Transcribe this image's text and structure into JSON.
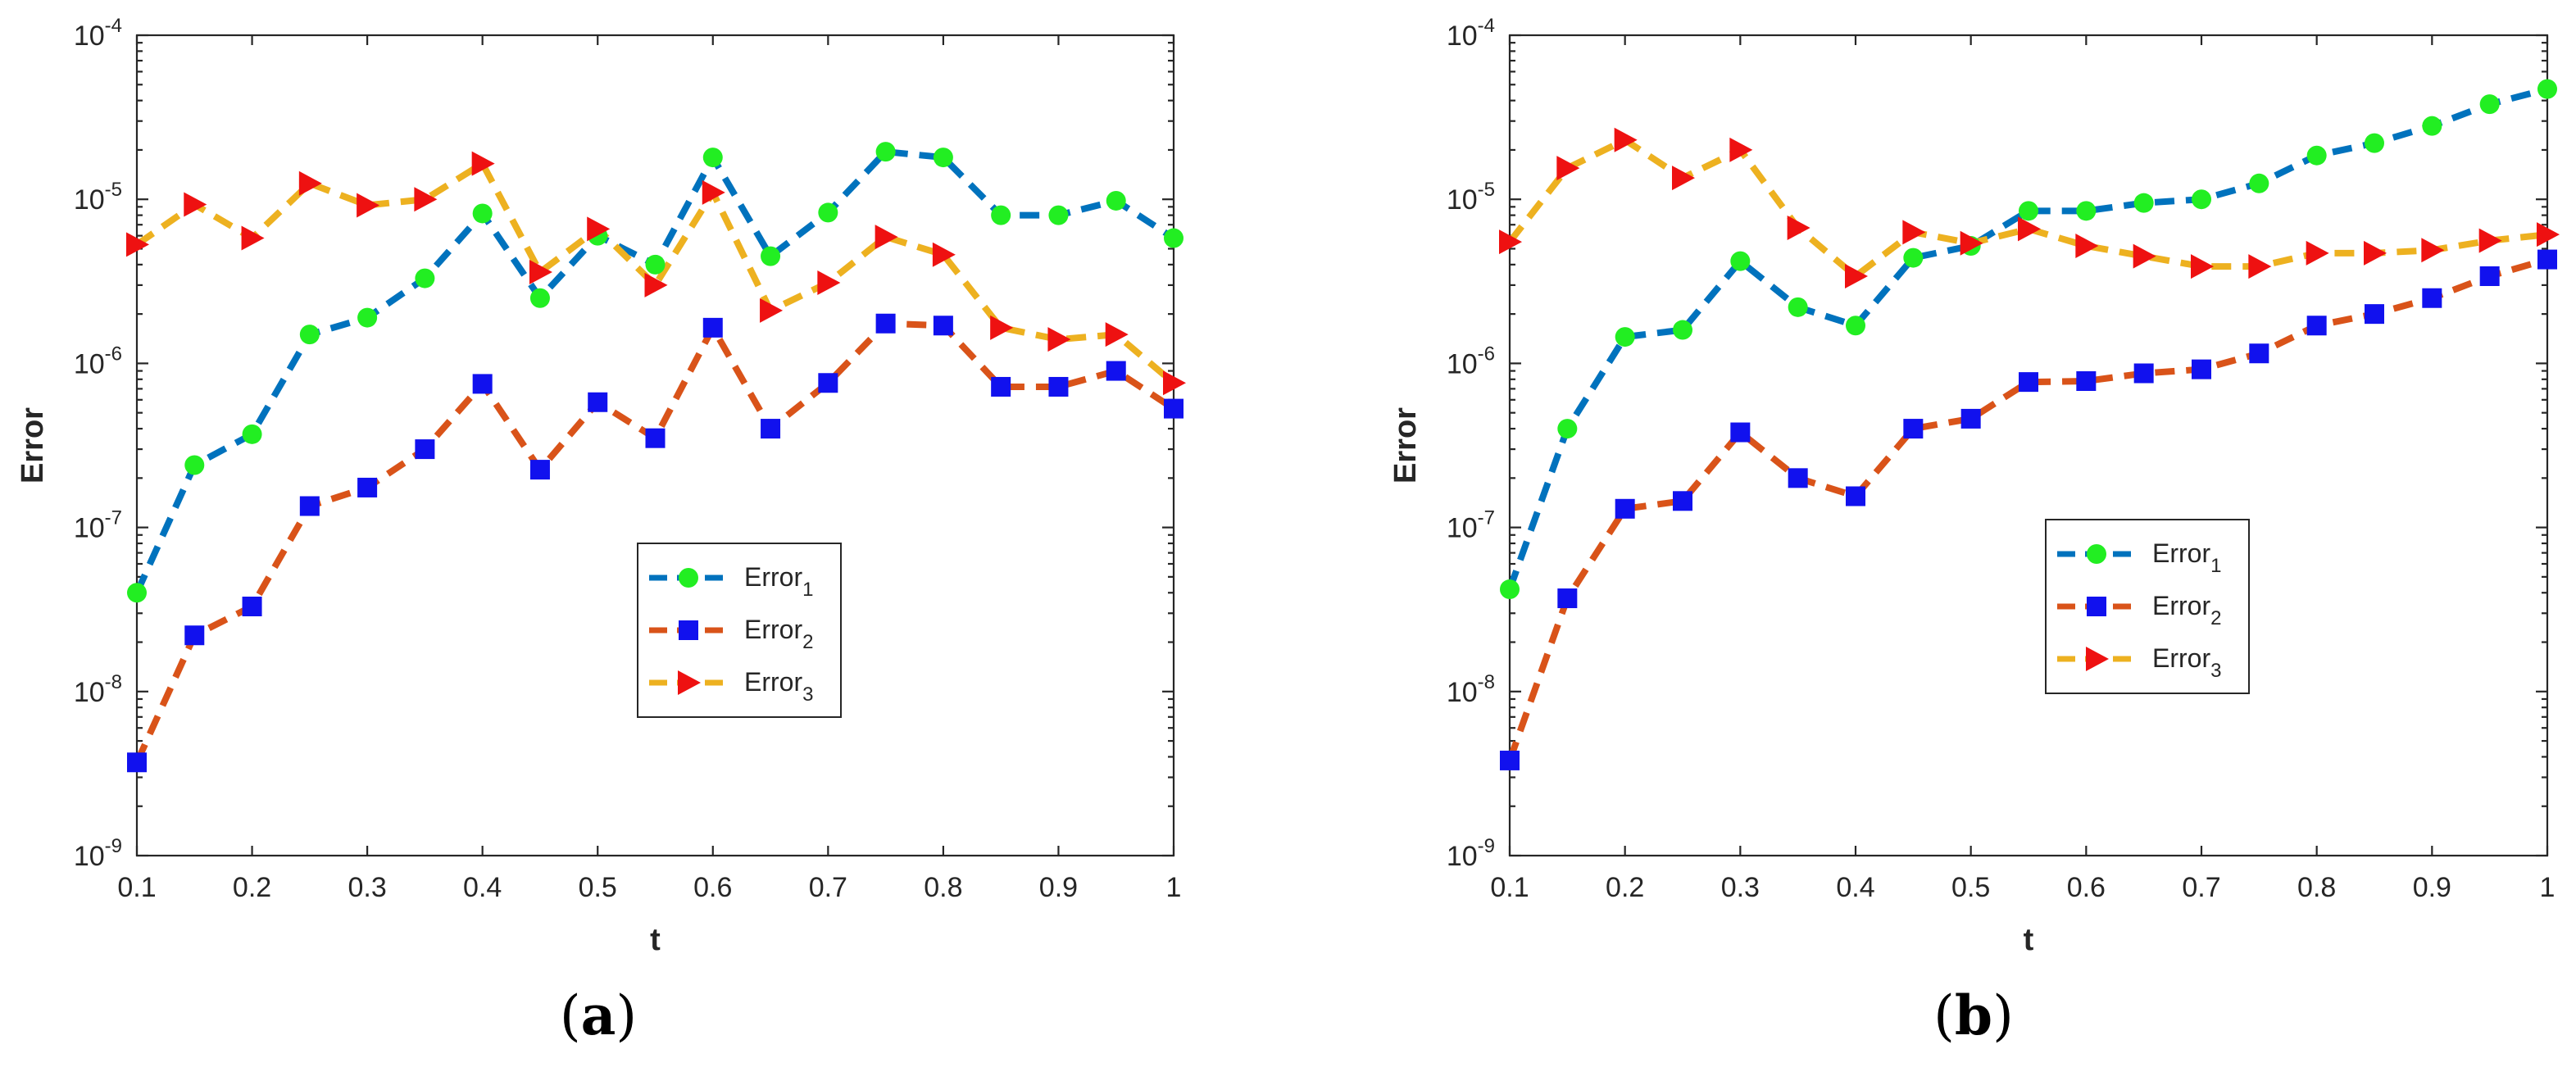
{
  "chart_data": [
    {
      "id": "a",
      "type": "line",
      "panel_label": "a",
      "xlabel": "t",
      "ylabel": "Error",
      "yscale": "log",
      "xlim": [
        0.1,
        1
      ],
      "ylim": [
        1e-09,
        0.0001
      ],
      "xticks": [
        "0.1",
        "0.2",
        "0.3",
        "0.4",
        "0.5",
        "0.6",
        "0.7",
        "0.8",
        "0.9",
        "1"
      ],
      "yticks": [
        {
          "base": "10",
          "exp": "-9"
        },
        {
          "base": "10",
          "exp": "-8"
        },
        {
          "base": "10",
          "exp": "-7"
        },
        {
          "base": "10",
          "exp": "-6"
        },
        {
          "base": "10",
          "exp": "-5"
        },
        {
          "base": "10",
          "exp": "-4"
        }
      ],
      "legend_position": "center",
      "x": [
        0.1,
        0.15,
        0.2,
        0.25,
        0.3,
        0.35,
        0.4,
        0.45,
        0.5,
        0.55,
        0.6,
        0.65,
        0.7,
        0.75,
        0.8,
        0.85,
        0.9,
        0.95,
        1.0
      ],
      "series": [
        {
          "name": "Error",
          "sub": "1",
          "line_color": "#0072BD",
          "marker": "circle",
          "marker_color": "#22EE22",
          "values": [
            4e-08,
            2.4e-07,
            3.7e-07,
            1.5e-06,
            1.9e-06,
            3.3e-06,
            8.2e-06,
            2.5e-06,
            6e-06,
            4e-06,
            1.8e-05,
            4.5e-06,
            8.3e-06,
            1.95e-05,
            1.8e-05,
            8e-06,
            8e-06,
            9.8e-06,
            5.8e-06
          ]
        },
        {
          "name": "Error",
          "sub": "2",
          "line_color": "#D95319",
          "marker": "square",
          "marker_color": "#1111EE",
          "values": [
            3.7e-09,
            2.2e-08,
            3.3e-08,
            1.35e-07,
            1.75e-07,
            3e-07,
            7.5e-07,
            2.25e-07,
            5.8e-07,
            3.5e-07,
            1.65e-06,
            4e-07,
            7.6e-07,
            1.75e-06,
            1.7e-06,
            7.2e-07,
            7.2e-07,
            9e-07,
            5.3e-07
          ]
        },
        {
          "name": "Error",
          "sub": "3",
          "line_color": "#EDB120",
          "marker": "triangle-right",
          "marker_color": "#EE1111",
          "values": [
            5.3e-06,
            9.3e-06,
            5.8e-06,
            1.25e-05,
            9.2e-06,
            1e-05,
            1.65e-05,
            3.6e-06,
            6.6e-06,
            3e-06,
            1.1e-05,
            2.1e-06,
            3.1e-06,
            5.9e-06,
            4.6e-06,
            1.65e-06,
            1.4e-06,
            1.5e-06,
            7.6e-07
          ]
        }
      ]
    },
    {
      "id": "b",
      "type": "line",
      "panel_label": "b",
      "xlabel": "t",
      "ylabel": "Error",
      "yscale": "log",
      "xlim": [
        0.1,
        1
      ],
      "ylim": [
        1e-09,
        0.0001
      ],
      "xticks": [
        "0.1",
        "0.2",
        "0.3",
        "0.4",
        "0.5",
        "0.6",
        "0.7",
        "0.8",
        "0.9",
        "1"
      ],
      "yticks": [
        {
          "base": "10",
          "exp": "-9"
        },
        {
          "base": "10",
          "exp": "-8"
        },
        {
          "base": "10",
          "exp": "-7"
        },
        {
          "base": "10",
          "exp": "-6"
        },
        {
          "base": "10",
          "exp": "-5"
        },
        {
          "base": "10",
          "exp": "-4"
        }
      ],
      "legend_position": "center",
      "x": [
        0.1,
        0.15,
        0.2,
        0.25,
        0.3,
        0.35,
        0.4,
        0.45,
        0.5,
        0.55,
        0.6,
        0.65,
        0.7,
        0.75,
        0.8,
        0.85,
        0.9,
        0.95,
        1.0
      ],
      "series": [
        {
          "name": "Error",
          "sub": "1",
          "line_color": "#0072BD",
          "marker": "circle",
          "marker_color": "#22EE22",
          "values": [
            4.2e-08,
            4e-07,
            1.45e-06,
            1.6e-06,
            4.2e-06,
            2.2e-06,
            1.7e-06,
            4.4e-06,
            5.2e-06,
            8.5e-06,
            8.5e-06,
            9.5e-06,
            1e-05,
            1.25e-05,
            1.85e-05,
            2.2e-05,
            2.8e-05,
            3.8e-05,
            4.7e-05
          ]
        },
        {
          "name": "Error",
          "sub": "2",
          "line_color": "#D95319",
          "marker": "square",
          "marker_color": "#1111EE",
          "values": [
            3.8e-09,
            3.7e-08,
            1.3e-07,
            1.45e-07,
            3.8e-07,
            2e-07,
            1.55e-07,
            4e-07,
            4.6e-07,
            7.7e-07,
            7.8e-07,
            8.7e-07,
            9.2e-07,
            1.15e-06,
            1.7e-06,
            2e-06,
            2.5e-06,
            3.4e-06,
            4.3e-06
          ]
        },
        {
          "name": "Error",
          "sub": "3",
          "line_color": "#EDB120",
          "marker": "triangle-right",
          "marker_color": "#EE1111",
          "values": [
            5.5e-06,
            1.55e-05,
            2.3e-05,
            1.35e-05,
            2e-05,
            6.7e-06,
            3.4e-06,
            6.3e-06,
            5.4e-06,
            6.6e-06,
            5.2e-06,
            4.5e-06,
            3.9e-06,
            3.9e-06,
            4.7e-06,
            4.7e-06,
            4.9e-06,
            5.6e-06,
            6.1e-06
          ]
        }
      ]
    }
  ]
}
